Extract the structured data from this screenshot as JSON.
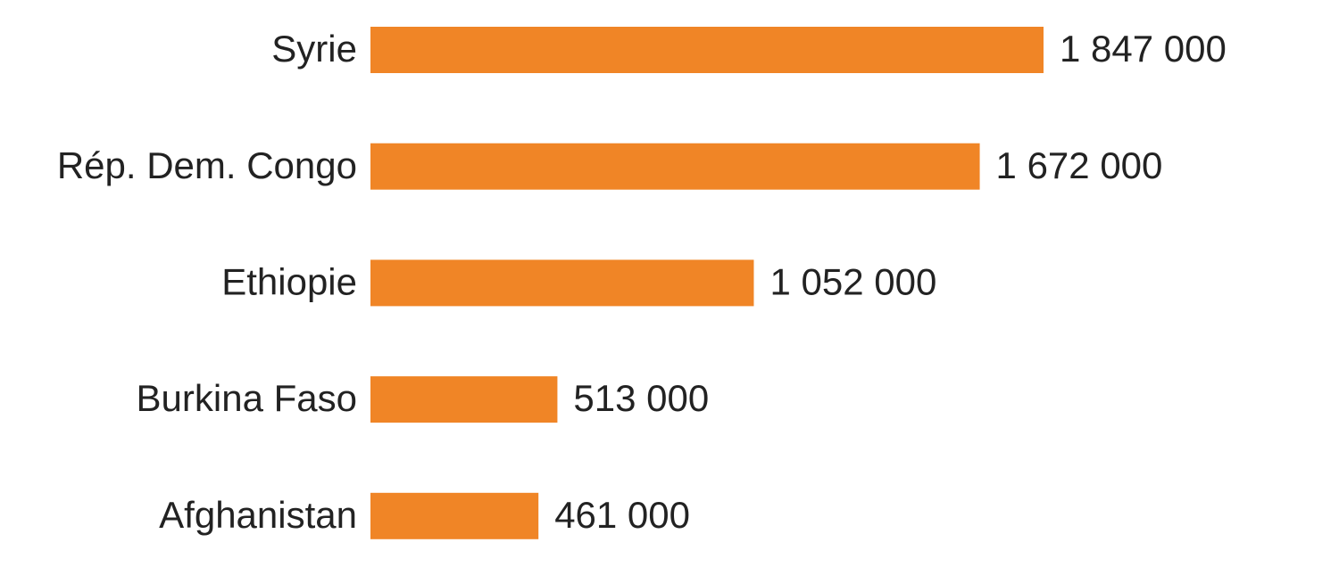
{
  "chart_data": {
    "type": "bar",
    "orientation": "horizontal",
    "categories": [
      "Syrie",
      "Rép. Dem. Congo",
      "Ethiopie",
      "Burkina Faso",
      "Afghanistan"
    ],
    "values": [
      1847000,
      1672000,
      1052000,
      513000,
      461000
    ],
    "value_labels": [
      "1 847 000",
      "1 672 000",
      "1 052 000",
      "513 000",
      "461 000"
    ],
    "color": "#f08526"
  }
}
